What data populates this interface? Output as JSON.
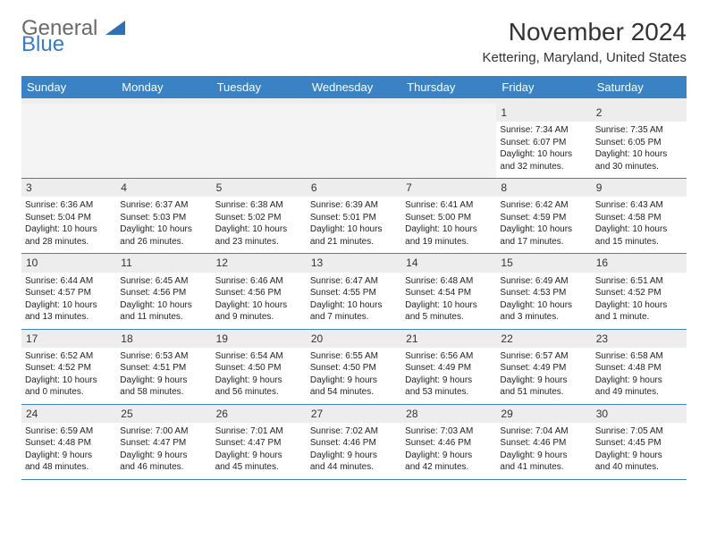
{
  "brand": {
    "part1": "General",
    "part2": "Blue"
  },
  "title": "November 2024",
  "location": "Kettering, Maryland, United States",
  "header_bg": "#3a82c4",
  "day_names": [
    "Sunday",
    "Monday",
    "Tuesday",
    "Wednesday",
    "Thursday",
    "Friday",
    "Saturday"
  ],
  "weeks": [
    [
      {
        "empty": true
      },
      {
        "empty": true
      },
      {
        "empty": true
      },
      {
        "empty": true
      },
      {
        "empty": true
      },
      {
        "num": "1",
        "sunrise": "Sunrise: 7:34 AM",
        "sunset": "Sunset: 6:07 PM",
        "daylight1": "Daylight: 10 hours",
        "daylight2": "and 32 minutes."
      },
      {
        "num": "2",
        "sunrise": "Sunrise: 7:35 AM",
        "sunset": "Sunset: 6:05 PM",
        "daylight1": "Daylight: 10 hours",
        "daylight2": "and 30 minutes."
      }
    ],
    [
      {
        "num": "3",
        "sunrise": "Sunrise: 6:36 AM",
        "sunset": "Sunset: 5:04 PM",
        "daylight1": "Daylight: 10 hours",
        "daylight2": "and 28 minutes."
      },
      {
        "num": "4",
        "sunrise": "Sunrise: 6:37 AM",
        "sunset": "Sunset: 5:03 PM",
        "daylight1": "Daylight: 10 hours",
        "daylight2": "and 26 minutes."
      },
      {
        "num": "5",
        "sunrise": "Sunrise: 6:38 AM",
        "sunset": "Sunset: 5:02 PM",
        "daylight1": "Daylight: 10 hours",
        "daylight2": "and 23 minutes."
      },
      {
        "num": "6",
        "sunrise": "Sunrise: 6:39 AM",
        "sunset": "Sunset: 5:01 PM",
        "daylight1": "Daylight: 10 hours",
        "daylight2": "and 21 minutes."
      },
      {
        "num": "7",
        "sunrise": "Sunrise: 6:41 AM",
        "sunset": "Sunset: 5:00 PM",
        "daylight1": "Daylight: 10 hours",
        "daylight2": "and 19 minutes."
      },
      {
        "num": "8",
        "sunrise": "Sunrise: 6:42 AM",
        "sunset": "Sunset: 4:59 PM",
        "daylight1": "Daylight: 10 hours",
        "daylight2": "and 17 minutes."
      },
      {
        "num": "9",
        "sunrise": "Sunrise: 6:43 AM",
        "sunset": "Sunset: 4:58 PM",
        "daylight1": "Daylight: 10 hours",
        "daylight2": "and 15 minutes."
      }
    ],
    [
      {
        "num": "10",
        "sunrise": "Sunrise: 6:44 AM",
        "sunset": "Sunset: 4:57 PM",
        "daylight1": "Daylight: 10 hours",
        "daylight2": "and 13 minutes."
      },
      {
        "num": "11",
        "sunrise": "Sunrise: 6:45 AM",
        "sunset": "Sunset: 4:56 PM",
        "daylight1": "Daylight: 10 hours",
        "daylight2": "and 11 minutes."
      },
      {
        "num": "12",
        "sunrise": "Sunrise: 6:46 AM",
        "sunset": "Sunset: 4:56 PM",
        "daylight1": "Daylight: 10 hours",
        "daylight2": "and 9 minutes."
      },
      {
        "num": "13",
        "sunrise": "Sunrise: 6:47 AM",
        "sunset": "Sunset: 4:55 PM",
        "daylight1": "Daylight: 10 hours",
        "daylight2": "and 7 minutes."
      },
      {
        "num": "14",
        "sunrise": "Sunrise: 6:48 AM",
        "sunset": "Sunset: 4:54 PM",
        "daylight1": "Daylight: 10 hours",
        "daylight2": "and 5 minutes."
      },
      {
        "num": "15",
        "sunrise": "Sunrise: 6:49 AM",
        "sunset": "Sunset: 4:53 PM",
        "daylight1": "Daylight: 10 hours",
        "daylight2": "and 3 minutes."
      },
      {
        "num": "16",
        "sunrise": "Sunrise: 6:51 AM",
        "sunset": "Sunset: 4:52 PM",
        "daylight1": "Daylight: 10 hours",
        "daylight2": "and 1 minute."
      }
    ],
    [
      {
        "num": "17",
        "sunrise": "Sunrise: 6:52 AM",
        "sunset": "Sunset: 4:52 PM",
        "daylight1": "Daylight: 10 hours",
        "daylight2": "and 0 minutes."
      },
      {
        "num": "18",
        "sunrise": "Sunrise: 6:53 AM",
        "sunset": "Sunset: 4:51 PM",
        "daylight1": "Daylight: 9 hours",
        "daylight2": "and 58 minutes."
      },
      {
        "num": "19",
        "sunrise": "Sunrise: 6:54 AM",
        "sunset": "Sunset: 4:50 PM",
        "daylight1": "Daylight: 9 hours",
        "daylight2": "and 56 minutes."
      },
      {
        "num": "20",
        "sunrise": "Sunrise: 6:55 AM",
        "sunset": "Sunset: 4:50 PM",
        "daylight1": "Daylight: 9 hours",
        "daylight2": "and 54 minutes."
      },
      {
        "num": "21",
        "sunrise": "Sunrise: 6:56 AM",
        "sunset": "Sunset: 4:49 PM",
        "daylight1": "Daylight: 9 hours",
        "daylight2": "and 53 minutes."
      },
      {
        "num": "22",
        "sunrise": "Sunrise: 6:57 AM",
        "sunset": "Sunset: 4:49 PM",
        "daylight1": "Daylight: 9 hours",
        "daylight2": "and 51 minutes."
      },
      {
        "num": "23",
        "sunrise": "Sunrise: 6:58 AM",
        "sunset": "Sunset: 4:48 PM",
        "daylight1": "Daylight: 9 hours",
        "daylight2": "and 49 minutes."
      }
    ],
    [
      {
        "num": "24",
        "sunrise": "Sunrise: 6:59 AM",
        "sunset": "Sunset: 4:48 PM",
        "daylight1": "Daylight: 9 hours",
        "daylight2": "and 48 minutes."
      },
      {
        "num": "25",
        "sunrise": "Sunrise: 7:00 AM",
        "sunset": "Sunset: 4:47 PM",
        "daylight1": "Daylight: 9 hours",
        "daylight2": "and 46 minutes."
      },
      {
        "num": "26",
        "sunrise": "Sunrise: 7:01 AM",
        "sunset": "Sunset: 4:47 PM",
        "daylight1": "Daylight: 9 hours",
        "daylight2": "and 45 minutes."
      },
      {
        "num": "27",
        "sunrise": "Sunrise: 7:02 AM",
        "sunset": "Sunset: 4:46 PM",
        "daylight1": "Daylight: 9 hours",
        "daylight2": "and 44 minutes."
      },
      {
        "num": "28",
        "sunrise": "Sunrise: 7:03 AM",
        "sunset": "Sunset: 4:46 PM",
        "daylight1": "Daylight: 9 hours",
        "daylight2": "and 42 minutes."
      },
      {
        "num": "29",
        "sunrise": "Sunrise: 7:04 AM",
        "sunset": "Sunset: 4:46 PM",
        "daylight1": "Daylight: 9 hours",
        "daylight2": "and 41 minutes."
      },
      {
        "num": "30",
        "sunrise": "Sunrise: 7:05 AM",
        "sunset": "Sunset: 4:45 PM",
        "daylight1": "Daylight: 9 hours",
        "daylight2": "and 40 minutes."
      }
    ]
  ]
}
